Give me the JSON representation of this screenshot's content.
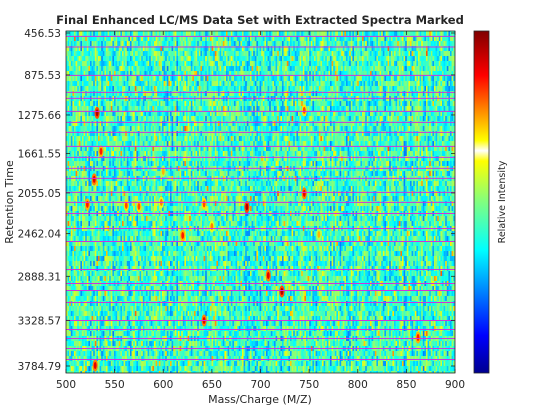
{
  "chart_data": {
    "type": "heatmap",
    "title": "Final Enhanced LC/MS Data Set with Extracted Spectra Marked",
    "xlabel": "Mass/Charge (M/Z)",
    "ylabel": "Retention Time",
    "colorbar_label": "Relative Intensity",
    "colormap": "jet",
    "xlim": [
      500,
      900
    ],
    "x_ticks": [
      "500",
      "550",
      "600",
      "650",
      "700",
      "750",
      "800",
      "850",
      "900"
    ],
    "y_ticks": [
      "456.53",
      "875.53",
      "1275.66",
      "1661.55",
      "2055.05",
      "2462.04",
      "2888.31",
      "3328.57",
      "3784.79"
    ],
    "y_direction": "reversed",
    "background_level": "mid (cyan/green)",
    "marked_spectra_line_color": "#cc33dd",
    "marked_spectra_retention_times": [
      490,
      596,
      880,
      1050,
      1110,
      1240,
      1350,
      1450,
      1590,
      1700,
      1810,
      1910,
      2050,
      2150,
      2260,
      2410,
      2540,
      2820,
      2960,
      3030,
      3150,
      3330,
      3420,
      3510,
      3610,
      3720
    ],
    "peaks": [
      {
        "mz": 532,
        "rt": 1255,
        "intensity": 0.95
      },
      {
        "mz": 536,
        "rt": 1640,
        "intensity": 0.85
      },
      {
        "mz": 529,
        "rt": 1920,
        "intensity": 0.9
      },
      {
        "mz": 522,
        "rt": 2170,
        "intensity": 0.85
      },
      {
        "mz": 562,
        "rt": 2180,
        "intensity": 0.8
      },
      {
        "mz": 575,
        "rt": 2190,
        "intensity": 0.8
      },
      {
        "mz": 598,
        "rt": 2150,
        "intensity": 0.75
      },
      {
        "mz": 642,
        "rt": 2165,
        "intensity": 0.8
      },
      {
        "mz": 686,
        "rt": 2195,
        "intensity": 0.95
      },
      {
        "mz": 745,
        "rt": 2060,
        "intensity": 0.9
      },
      {
        "mz": 620,
        "rt": 2480,
        "intensity": 0.85
      },
      {
        "mz": 650,
        "rt": 2390,
        "intensity": 0.75
      },
      {
        "mz": 708,
        "rt": 2880,
        "intensity": 0.9
      },
      {
        "mz": 722,
        "rt": 3040,
        "intensity": 0.95
      },
      {
        "mz": 642,
        "rt": 3330,
        "intensity": 0.9
      },
      {
        "mz": 530,
        "rt": 3780,
        "intensity": 0.9
      },
      {
        "mz": 862,
        "rt": 3500,
        "intensity": 0.85
      },
      {
        "mz": 745,
        "rt": 1230,
        "intensity": 0.8
      },
      {
        "mz": 600,
        "rt": 1840,
        "intensity": 0.7
      },
      {
        "mz": 760,
        "rt": 2470,
        "intensity": 0.7
      }
    ]
  }
}
